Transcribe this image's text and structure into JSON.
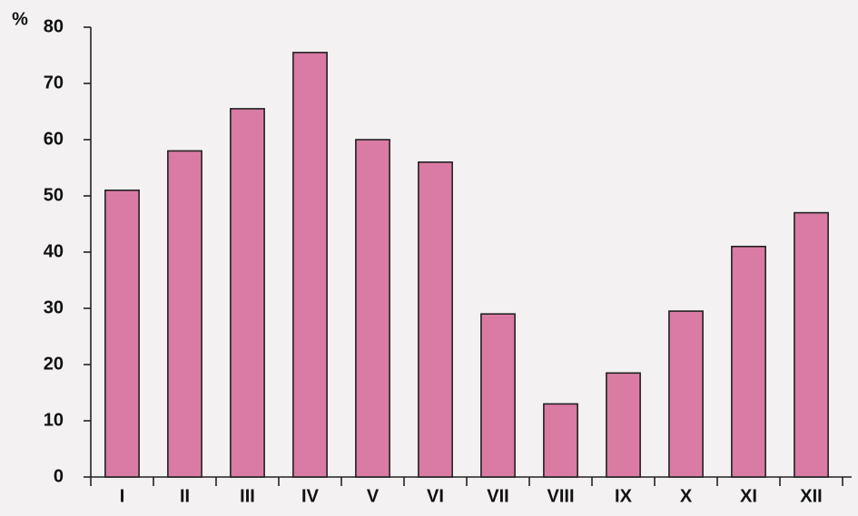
{
  "chart_data": {
    "type": "bar",
    "y_label": "%",
    "categories": [
      "I",
      "II",
      "III",
      "IV",
      "V",
      "VI",
      "VII",
      "VIII",
      "IX",
      "X",
      "XI",
      "XII"
    ],
    "values": [
      51,
      58,
      65.5,
      75.5,
      60,
      56,
      29,
      13,
      18.5,
      29.5,
      41,
      47
    ],
    "color": "#d97ba3",
    "ylim": [
      0,
      80
    ],
    "yticks": [
      0,
      10,
      20,
      30,
      40,
      50,
      60,
      70,
      80
    ]
  }
}
